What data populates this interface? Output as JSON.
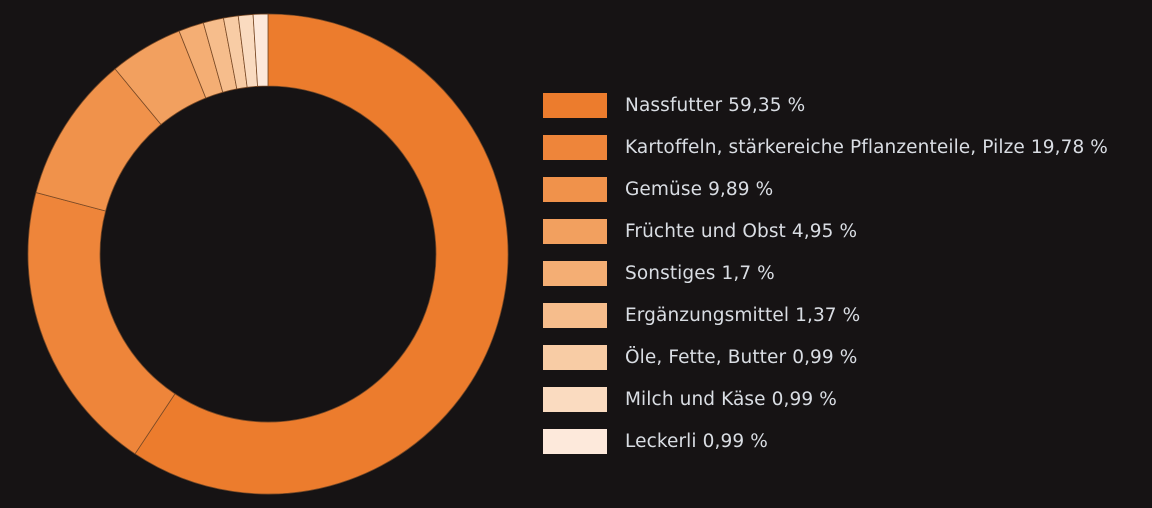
{
  "chart_data": {
    "type": "pie",
    "style": "donut",
    "legend_position": "right",
    "categories": [
      "Nassfutter",
      "Kartoffeln, stärkereiche Pflanzenteile, Pilze",
      "Gemüse",
      "Früchte und Obst",
      "Sonstiges",
      "Ergänzungsmittel",
      "Öle, Fette, Butter",
      "Milch und Käse",
      "Leckerli"
    ],
    "values": [
      59.35,
      19.78,
      9.89,
      4.95,
      1.7,
      1.37,
      0.99,
      0.99,
      0.99
    ],
    "legend_labels": [
      "Nassfutter 59,35 %",
      "Kartoffeln, stärkereiche Pflanzenteile, Pilze 19,78 %",
      "Gemüse 9,89 %",
      "Früchte und Obst 4,95 %",
      "Sonstiges 1,7 %",
      "Ergänzungsmittel 1,37 %",
      "Öle, Fette, Butter 0,99 %",
      "Milch und Käse 0,99 %",
      "Leckerli 0,99 %"
    ],
    "colors": [
      "#ec7c2d",
      "#ee853a",
      "#f0924b",
      "#f2a05f",
      "#f4ae74",
      "#f6bd8c",
      "#f8cca5",
      "#fadbc0",
      "#fde9db"
    ],
    "unit": "%"
  },
  "theme": {
    "background": "#161314",
    "separator": "#7a4a26"
  }
}
